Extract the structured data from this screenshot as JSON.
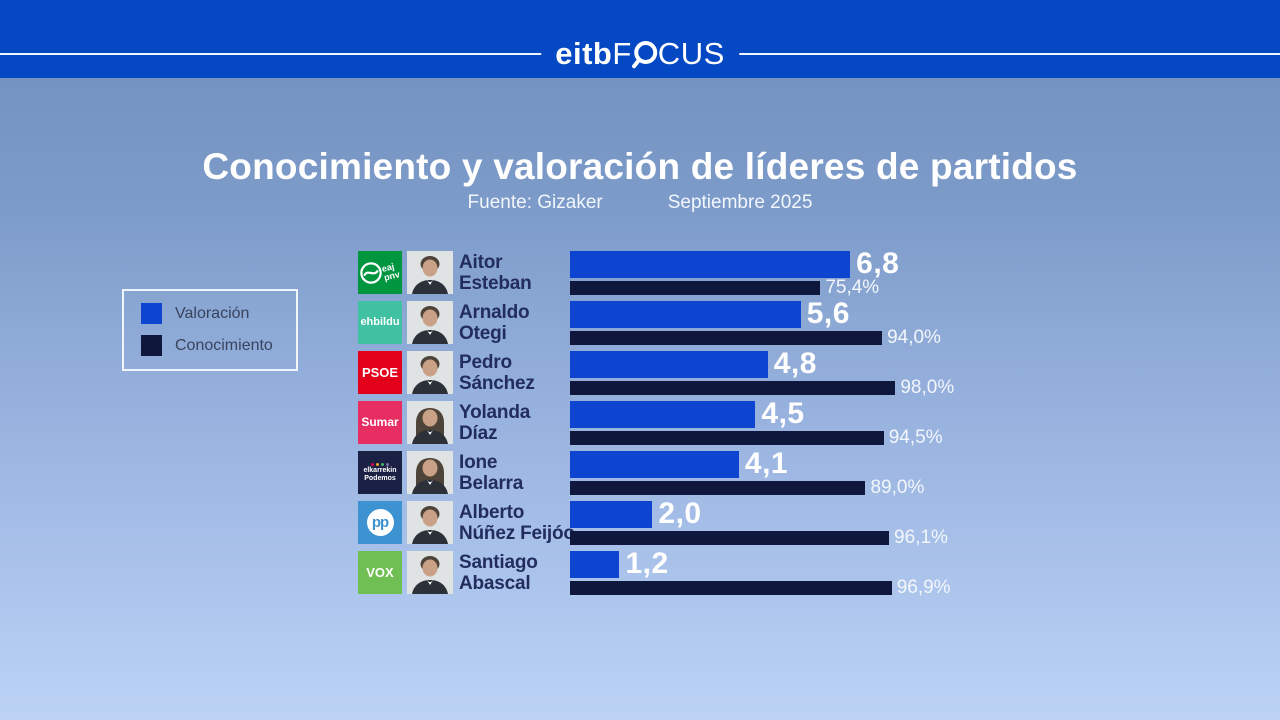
{
  "header": {
    "logo_eitb": "eitb",
    "logo_focus_before_o": "F",
    "logo_focus_after_o": "CUS",
    "magnifier_icon": "magnifier-as-letter-o",
    "bar_color": "#0548c4"
  },
  "title": "Conocimiento y valoración de líderes de partidos",
  "subtitle": {
    "source": "Fuente: Gizaker",
    "date": "Septiembre 2025"
  },
  "legend": {
    "items": [
      {
        "label": "Valoración",
        "color": "#0d45d0"
      },
      {
        "label": "Conocimiento",
        "color": "#10173d"
      }
    ]
  },
  "chart_data": {
    "type": "bar",
    "orientation": "horizontal",
    "title": "Conocimiento y valoración de líderes de partidos",
    "source": "Fuente: Gizaker",
    "period": "Septiembre 2025",
    "series_names": [
      "Valoración",
      "Conocimiento"
    ],
    "valoracion_scale": {
      "min": 0,
      "max": 10
    },
    "conocimiento_scale": {
      "min": 0,
      "max": 100,
      "unit": "%"
    },
    "legend_position": "left",
    "grid": false,
    "rows": [
      {
        "party": "EAJ-PNV",
        "logo": {
          "variant": "pnv",
          "bg": "#00953f",
          "lines": "eaj\npnv",
          "font": 9
        },
        "photo_variant": "m",
        "leader_line1": "Aitor",
        "leader_line2": "Esteban",
        "valoracion": 6.8,
        "valoracion_label": "6,8",
        "conocimiento": 75.4,
        "conocimiento_label": "75,4%"
      },
      {
        "party": "EH Bildu",
        "logo": {
          "variant": "text",
          "bg": "#3fc1a2",
          "lines": "ehbildu",
          "font": 11
        },
        "photo_variant": "m",
        "leader_line1": "Arnaldo",
        "leader_line2": "Otegi",
        "valoracion": 5.6,
        "valoracion_label": "5,6",
        "conocimiento": 94.0,
        "conocimiento_label": "94,0%"
      },
      {
        "party": "PSOE",
        "logo": {
          "variant": "text",
          "bg": "#e2001a",
          "lines": "PSOE",
          "font": 13
        },
        "photo_variant": "m",
        "leader_line1": "Pedro",
        "leader_line2": "Sánchez",
        "valoracion": 4.8,
        "valoracion_label": "4,8",
        "conocimiento": 98.0,
        "conocimiento_label": "98,0%"
      },
      {
        "party": "Sumar",
        "logo": {
          "variant": "text",
          "bg": "#e82d62",
          "lines": "Sumar",
          "font": 12
        },
        "photo_variant": "f",
        "leader_line1": "Yolanda",
        "leader_line2": "Díaz",
        "valoracion": 4.5,
        "valoracion_label": "4,5",
        "conocimiento": 94.5,
        "conocimiento_label": "94,5%"
      },
      {
        "party": "Elkarrekin Podemos",
        "logo": {
          "variant": "podemos",
          "bg": "#1b2145",
          "lines": "elkarrekin\nPodemos",
          "font": 7
        },
        "photo_variant": "f",
        "leader_line1": "Ione",
        "leader_line2": "Belarra",
        "valoracion": 4.1,
        "valoracion_label": "4,1",
        "conocimiento": 89.0,
        "conocimiento_label": "89,0%"
      },
      {
        "party": "PP",
        "logo": {
          "variant": "pp",
          "bg": "#3d93d2",
          "lines": "pp",
          "font": 15
        },
        "photo_variant": "m",
        "leader_line1": "Alberto",
        "leader_line2": "Núñez Feijóo",
        "valoracion": 2.0,
        "valoracion_label": "2,0",
        "conocimiento": 96.1,
        "conocimiento_label": "96,1%"
      },
      {
        "party": "VOX",
        "logo": {
          "variant": "text",
          "bg": "#70bf54",
          "lines": "VOX",
          "font": 13
        },
        "photo_variant": "m",
        "leader_line1": "Santiago",
        "leader_line2": "Abascal",
        "valoracion": 1.2,
        "valoracion_label": "1,2",
        "conocimiento": 96.9,
        "conocimiento_label": "96,9%"
      }
    ],
    "colors": {
      "valoracion_bar": "#0d45d0",
      "conocimiento_bar": "#10173d",
      "name_text": "#222d5e",
      "value_text": "#ffffff"
    }
  }
}
